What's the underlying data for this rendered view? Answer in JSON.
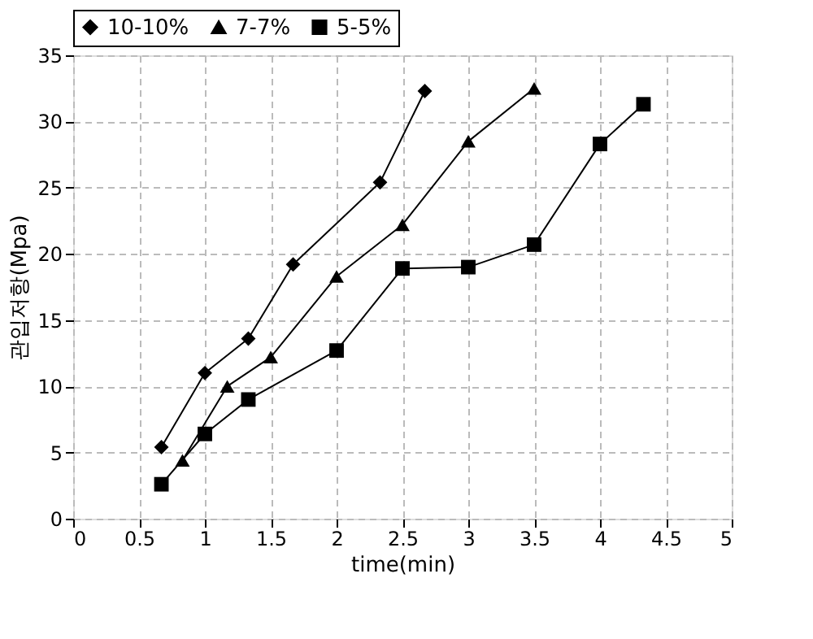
{
  "chart_data": {
    "type": "line",
    "xlabel": "time(min)",
    "ylabel": "관입저항(Mpa)",
    "xlim": [
      0,
      5
    ],
    "xticks": [
      0,
      0.5,
      1,
      1.5,
      2,
      2.5,
      3,
      3.5,
      4,
      4.5,
      5
    ],
    "ylim": [
      0,
      35
    ],
    "yticks": [
      0,
      5,
      10,
      15,
      20,
      25,
      30,
      35
    ],
    "grid": true,
    "legend": "top",
    "line_style": "solid",
    "series": [
      {
        "name": "10-10%",
        "color": "#000000",
        "marker": "diamond",
        "x": [
          0.67,
          1,
          1.33,
          1.67,
          2.33,
          2.67
        ],
        "values": [
          5.4,
          11,
          13.6,
          19.2,
          25.4,
          32.3
        ]
      },
      {
        "name": "7-7%",
        "color": "#000000",
        "marker": "triangle",
        "x": [
          0.83,
          1.17,
          1.5,
          2,
          2.5,
          3,
          3.5
        ],
        "values": [
          4.4,
          10,
          12.2,
          18.3,
          22.2,
          28.5,
          32.5
        ]
      },
      {
        "name": "5-5%",
        "color": "#000000",
        "marker": "square",
        "x": [
          0.67,
          1,
          1.33,
          2,
          2.5,
          3,
          3.5,
          4,
          4.33
        ],
        "values": [
          2.6,
          6.4,
          9,
          12.7,
          18.9,
          19,
          20.7,
          28.3,
          31.3
        ]
      }
    ]
  }
}
